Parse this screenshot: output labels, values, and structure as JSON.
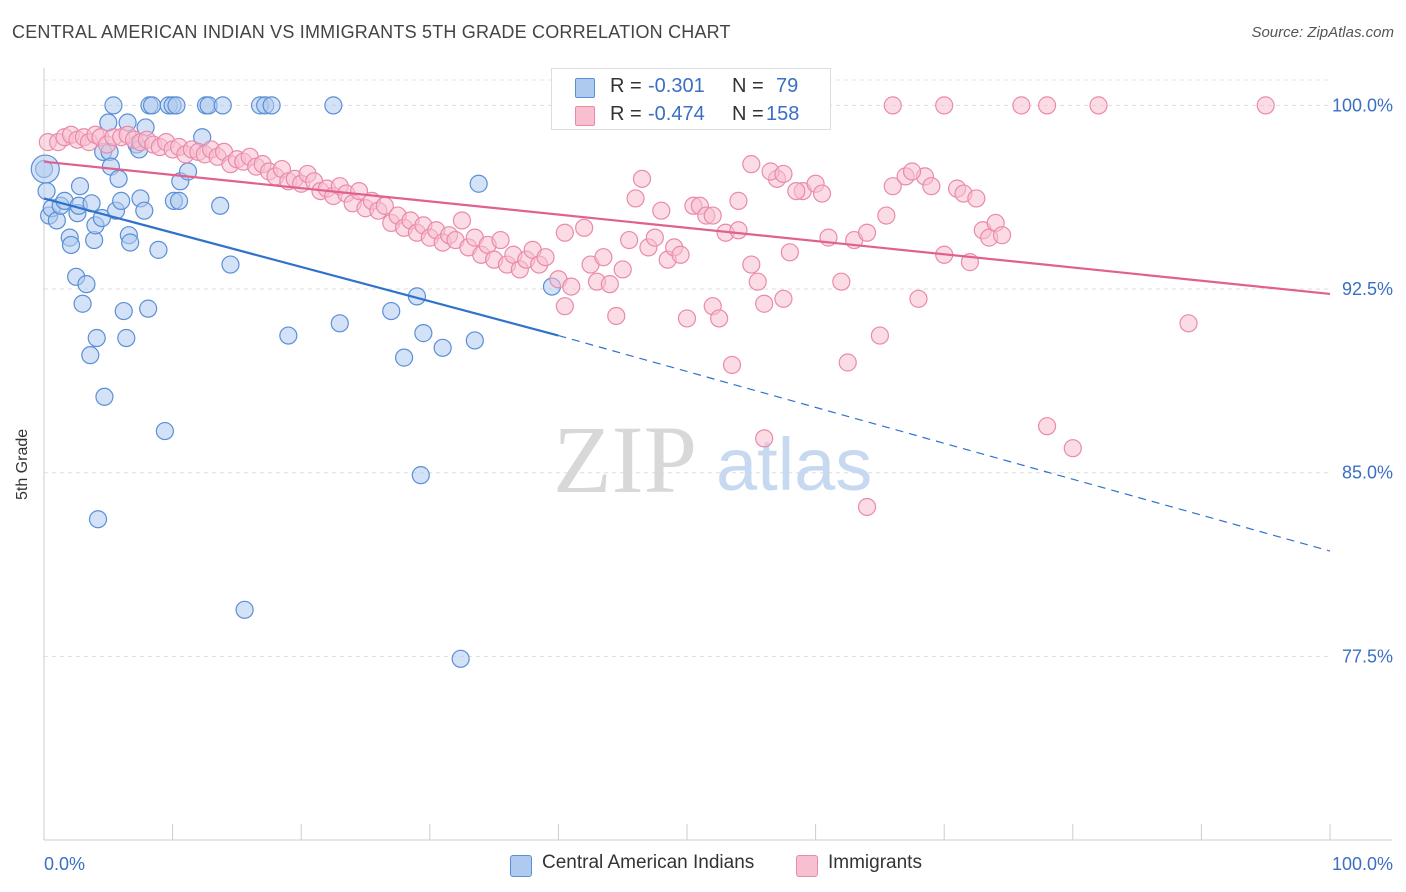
{
  "title": "CENTRAL AMERICAN INDIAN VS IMMIGRANTS 5TH GRADE CORRELATION CHART",
  "source": "Source: ZipAtlas.com",
  "watermark": {
    "zip": "ZIP",
    "atlas": "atlas"
  },
  "legend": {
    "rows": [
      {
        "r_label": "R =",
        "r_value": "-0.301",
        "n_label": "N =",
        "n_value": "79"
      },
      {
        "r_label": "R =",
        "r_value": "-0.474",
        "n_label": "N =",
        "n_value": "158"
      }
    ]
  },
  "bottom_legend": [
    "Central American Indians",
    "Immigrants"
  ],
  "colors": {
    "blue_fill": "#aecbef",
    "blue_stroke": "#5b8fd6",
    "blue_line": "#2f72cc",
    "pink_fill": "#f7bfd0",
    "pink_stroke": "#ea8aab",
    "pink_line": "#e0608e",
    "tick_label": "#3a6fc4"
  },
  "chart_data": {
    "type": "scatter",
    "xlabel": "",
    "ylabel": "5th Grade",
    "xlim": [
      0,
      100
    ],
    "ylim": [
      70.0,
      101.2
    ],
    "x_tick_labels": {
      "left": "0.0%",
      "right": "100.0%"
    },
    "y_ticks": [
      {
        "value": 100.0,
        "label": "100.0%"
      },
      {
        "value": 92.5,
        "label": "92.5%"
      },
      {
        "value": 85.0,
        "label": "85.0%"
      },
      {
        "value": 77.5,
        "label": "77.5%"
      }
    ],
    "grid": true,
    "series": [
      {
        "name": "Central American Indians",
        "trend": {
          "x0": 0,
          "y0": 96.2,
          "x1": 40,
          "y1": 90.6,
          "dash_to_x": 100,
          "dash_to_y": 81.8
        },
        "points": [
          [
            0,
            97.4
          ],
          [
            0.2,
            96.5
          ],
          [
            0.4,
            95.5
          ],
          [
            0.6,
            95.8
          ],
          [
            1,
            95.3
          ],
          [
            1.3,
            95.9
          ],
          [
            1.6,
            96.1
          ],
          [
            2,
            94.6
          ],
          [
            2.1,
            94.3
          ],
          [
            2.5,
            93.0
          ],
          [
            2.6,
            95.6
          ],
          [
            2.7,
            95.9
          ],
          [
            2.8,
            96.7
          ],
          [
            3,
            91.9
          ],
          [
            3.3,
            92.7
          ],
          [
            3.6,
            89.8
          ],
          [
            3.7,
            96.0
          ],
          [
            3.9,
            94.5
          ],
          [
            4,
            95.1
          ],
          [
            4.1,
            90.5
          ],
          [
            4.2,
            83.1
          ],
          [
            4.5,
            95.4
          ],
          [
            4.6,
            98.1
          ],
          [
            4.7,
            88.1
          ],
          [
            5,
            99.3
          ],
          [
            5.1,
            98.1
          ],
          [
            5.2,
            97.5
          ],
          [
            5.4,
            100
          ],
          [
            5.6,
            95.7
          ],
          [
            5.8,
            97.0
          ],
          [
            6,
            96.1
          ],
          [
            6.2,
            91.6
          ],
          [
            6.4,
            90.5
          ],
          [
            6.5,
            99.3
          ],
          [
            6.6,
            94.7
          ],
          [
            6.7,
            94.4
          ],
          [
            7.2,
            98.4
          ],
          [
            7.4,
            98.2
          ],
          [
            7.5,
            96.2
          ],
          [
            7.8,
            95.7
          ],
          [
            7.9,
            99.1
          ],
          [
            8.1,
            91.7
          ],
          [
            8.2,
            100
          ],
          [
            8.4,
            100
          ],
          [
            8.9,
            94.1
          ],
          [
            9.4,
            86.7
          ],
          [
            9.7,
            100
          ],
          [
            10,
            100
          ],
          [
            10.1,
            96.1
          ],
          [
            10.3,
            100
          ],
          [
            10.5,
            96.1
          ],
          [
            10.6,
            96.9
          ],
          [
            11.2,
            97.3
          ],
          [
            12.3,
            98.7
          ],
          [
            12.6,
            100
          ],
          [
            12.8,
            100
          ],
          [
            13.7,
            95.9
          ],
          [
            13.9,
            100
          ],
          [
            14.5,
            93.5
          ],
          [
            15.6,
            79.4
          ],
          [
            16.8,
            100
          ],
          [
            17.2,
            100
          ],
          [
            17.7,
            100
          ],
          [
            19,
            90.6
          ],
          [
            22.5,
            100
          ],
          [
            23,
            91.1
          ],
          [
            27,
            91.6
          ],
          [
            28,
            89.7
          ],
          [
            29,
            92.2
          ],
          [
            29.3,
            84.9
          ],
          [
            29.5,
            90.7
          ],
          [
            31,
            90.1
          ],
          [
            32.4,
            77.4
          ],
          [
            33.5,
            90.4
          ],
          [
            33.8,
            96.8
          ],
          [
            39.5,
            92.6
          ]
        ]
      },
      {
        "name": "Immigrants",
        "trend": {
          "x0": 0,
          "y0": 97.7,
          "x1": 100,
          "y1": 92.3
        },
        "points": [
          [
            0.3,
            98.5
          ],
          [
            1.1,
            98.5
          ],
          [
            1.6,
            98.7
          ],
          [
            2.1,
            98.8
          ],
          [
            2.6,
            98.6
          ],
          [
            3.1,
            98.7
          ],
          [
            3.5,
            98.5
          ],
          [
            4,
            98.8
          ],
          [
            4.4,
            98.7
          ],
          [
            4.9,
            98.4
          ],
          [
            5.4,
            98.7
          ],
          [
            6,
            98.7
          ],
          [
            6.5,
            98.8
          ],
          [
            7,
            98.6
          ],
          [
            7.5,
            98.5
          ],
          [
            8,
            98.6
          ],
          [
            8.5,
            98.4
          ],
          [
            9,
            98.3
          ],
          [
            9.5,
            98.5
          ],
          [
            10,
            98.2
          ],
          [
            10.5,
            98.3
          ],
          [
            11,
            98.0
          ],
          [
            11.5,
            98.2
          ],
          [
            12,
            98.1
          ],
          [
            12.5,
            98.0
          ],
          [
            13,
            98.2
          ],
          [
            13.5,
            97.9
          ],
          [
            14,
            98.1
          ],
          [
            14.5,
            97.6
          ],
          [
            15,
            97.8
          ],
          [
            15.5,
            97.7
          ],
          [
            16,
            97.9
          ],
          [
            16.5,
            97.5
          ],
          [
            17,
            97.6
          ],
          [
            17.5,
            97.3
          ],
          [
            18,
            97.1
          ],
          [
            18.5,
            97.4
          ],
          [
            19,
            96.9
          ],
          [
            19.5,
            97.0
          ],
          [
            20,
            96.8
          ],
          [
            20.5,
            97.2
          ],
          [
            21,
            96.9
          ],
          [
            21.5,
            96.5
          ],
          [
            22,
            96.6
          ],
          [
            22.5,
            96.3
          ],
          [
            23,
            96.7
          ],
          [
            23.5,
            96.4
          ],
          [
            24,
            96.0
          ],
          [
            24.5,
            96.5
          ],
          [
            25,
            95.8
          ],
          [
            25.5,
            96.1
          ],
          [
            26,
            95.7
          ],
          [
            26.5,
            95.9
          ],
          [
            27,
            95.2
          ],
          [
            27.5,
            95.5
          ],
          [
            28,
            95.0
          ],
          [
            28.5,
            95.3
          ],
          [
            29,
            94.8
          ],
          [
            29.5,
            95.1
          ],
          [
            30,
            94.6
          ],
          [
            30.5,
            94.9
          ],
          [
            31,
            94.4
          ],
          [
            31.5,
            94.7
          ],
          [
            32,
            94.5
          ],
          [
            32.5,
            95.3
          ],
          [
            33,
            94.2
          ],
          [
            33.5,
            94.6
          ],
          [
            34,
            93.9
          ],
          [
            34.5,
            94.3
          ],
          [
            35,
            93.7
          ],
          [
            35.5,
            94.5
          ],
          [
            36,
            93.5
          ],
          [
            36.5,
            93.9
          ],
          [
            37,
            93.3
          ],
          [
            37.5,
            93.7
          ],
          [
            38,
            94.1
          ],
          [
            38.5,
            93.5
          ],
          [
            39,
            93.8
          ],
          [
            40,
            92.9
          ],
          [
            40.5,
            94.8
          ],
          [
            41,
            92.6
          ],
          [
            42,
            95.0
          ],
          [
            42.5,
            93.5
          ],
          [
            43,
            92.8
          ],
          [
            43.5,
            93.8
          ],
          [
            44,
            92.7
          ],
          [
            44.5,
            91.4
          ],
          [
            45,
            93.3
          ],
          [
            45.5,
            94.5
          ],
          [
            46,
            96.2
          ],
          [
            46.5,
            97.0
          ],
          [
            47,
            94.2
          ],
          [
            47.5,
            94.6
          ],
          [
            48,
            95.7
          ],
          [
            48.5,
            93.7
          ],
          [
            49,
            94.2
          ],
          [
            49.5,
            93.9
          ],
          [
            50,
            91.3
          ],
          [
            50.5,
            95.9
          ],
          [
            51,
            95.9
          ],
          [
            51.5,
            95.5
          ],
          [
            52,
            91.8
          ],
          [
            52.5,
            91.3
          ],
          [
            53,
            94.8
          ],
          [
            53.5,
            89.4
          ],
          [
            54,
            96.1
          ],
          [
            55,
            93.5
          ],
          [
            55.5,
            92.8
          ],
          [
            56,
            91.9
          ],
          [
            57,
            97.0
          ],
          [
            57.5,
            92.1
          ],
          [
            58,
            94.0
          ],
          [
            59,
            96.5
          ],
          [
            60,
            96.8
          ],
          [
            60.5,
            96.4
          ],
          [
            61,
            94.6
          ],
          [
            62,
            92.8
          ],
          [
            62.5,
            89.5
          ],
          [
            63,
            94.5
          ],
          [
            64,
            94.8
          ],
          [
            65,
            90.6
          ],
          [
            66,
            96.7
          ],
          [
            67,
            97.1
          ],
          [
            68,
            92.1
          ],
          [
            68.5,
            97.1
          ],
          [
            69,
            96.7
          ],
          [
            70,
            93.9
          ],
          [
            71,
            96.6
          ],
          [
            71.5,
            96.4
          ],
          [
            72,
            93.6
          ],
          [
            72.5,
            96.2
          ],
          [
            73,
            94.9
          ],
          [
            73.5,
            94.6
          ],
          [
            74,
            95.2
          ],
          [
            74.5,
            94.7
          ],
          [
            66,
            100
          ],
          [
            70,
            100
          ],
          [
            76,
            100
          ],
          [
            78,
            100
          ],
          [
            82,
            100
          ],
          [
            95,
            100
          ],
          [
            56,
            86.4
          ],
          [
            64,
            83.6
          ],
          [
            78,
            86.9
          ],
          [
            80,
            86.0
          ],
          [
            89,
            91.1
          ],
          [
            55,
            97.6
          ],
          [
            56.5,
            97.3
          ],
          [
            57.5,
            97.2
          ],
          [
            58.5,
            96.5
          ],
          [
            65.5,
            95.5
          ],
          [
            67.5,
            97.3
          ],
          [
            40.5,
            91.8
          ],
          [
            52,
            95.5
          ],
          [
            54,
            94.9
          ]
        ]
      }
    ]
  }
}
